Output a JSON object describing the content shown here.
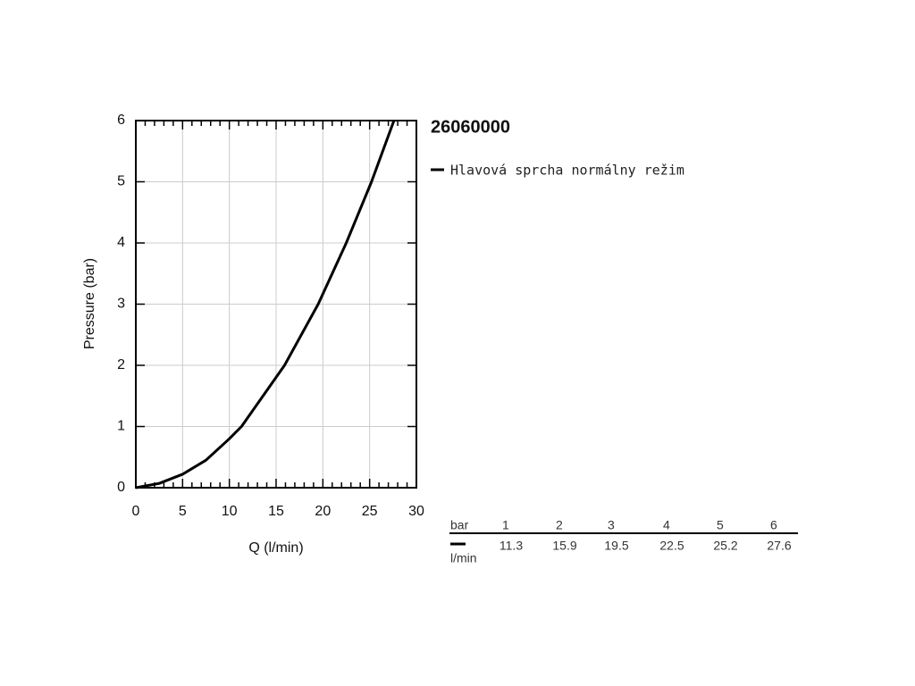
{
  "chart_data": {
    "type": "line",
    "title": "26060000",
    "xlabel": "Q (l/min)",
    "ylabel": "Pressure (bar)",
    "xlim": [
      0,
      30
    ],
    "ylim": [
      0,
      6
    ],
    "xticks": [
      0,
      5,
      10,
      15,
      20,
      25,
      30
    ],
    "yticks": [
      0,
      1,
      2,
      3,
      4,
      5,
      6
    ],
    "xminorticks": [
      1,
      2,
      3,
      4,
      6,
      7,
      8,
      9,
      11,
      12,
      13,
      14,
      16,
      17,
      18,
      19,
      21,
      22,
      23,
      24,
      26,
      27,
      28,
      29
    ],
    "grid": true,
    "series": [
      {
        "name": "Hlavová sprcha normálny režim",
        "color": "#000000",
        "x": [
          0,
          2.5,
          5,
          7.5,
          10,
          11.3,
          15.9,
          19.5,
          22.5,
          25.2,
          27.6
        ],
        "values": [
          0,
          0.07,
          0.22,
          0.45,
          0.8,
          1,
          2,
          3,
          4,
          5,
          6
        ]
      }
    ],
    "table": {
      "header": "bar",
      "columns": [
        1,
        2,
        3,
        4,
        5,
        6
      ],
      "unit": "l/min",
      "values": [
        11.3,
        15.9,
        19.5,
        22.5,
        25.2,
        27.6
      ]
    }
  }
}
